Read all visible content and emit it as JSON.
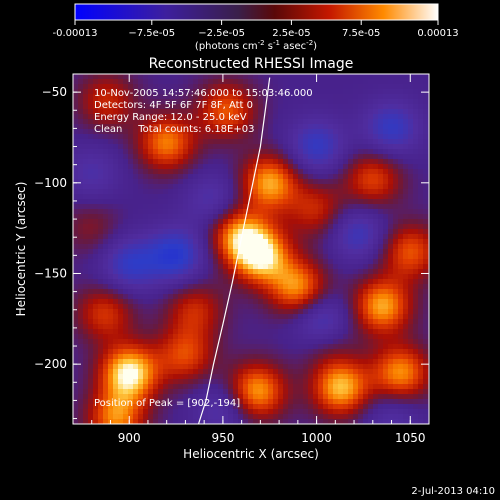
{
  "chart_data": {
    "type": "heatmap",
    "title": "Reconstructed RHESSI Image",
    "xlabel": "Heliocentric X (arcsec)",
    "ylabel": "Heliocentric Y (arcsec)",
    "xlim": [
      870,
      1060
    ],
    "ylim": [
      -233,
      -40
    ],
    "x_ticks": [
      900,
      950,
      1000,
      1050
    ],
    "y_ticks": [
      -50,
      -100,
      -150,
      -200
    ],
    "colorbar": {
      "range": [
        -0.00013,
        0.00013
      ],
      "tick_values": [
        -0.00013,
        -7.5e-05,
        -2.5e-05,
        2.5e-05,
        7.5e-05,
        0.00013
      ],
      "tick_labels": [
        "-0.00013",
        "−7.5e-05",
        "−2.5e-05",
        "2.5e-05",
        "7.5e-05",
        "0.00013"
      ],
      "units_prefix": "(photons cm",
      "units_exp1": "-2",
      "units_mid": " s",
      "units_exp2": "-1",
      "units_mid2": " asec",
      "units_exp3": "-2",
      "units_suffix": ")"
    },
    "annotations": {
      "time_range": "10-Nov-2005 14:57:46.000 to 15:03:46.000",
      "detectors": "Detectors: 4F 5F 6F 7F 8F, Att 0",
      "energy": "Energy Range: 12.0 - 25.0 keV",
      "clean": "Clean     Total counts: 6.18E+03",
      "peak": "Position of Peak = [902,-194]"
    },
    "blobs": [
      {
        "x": 900,
        "y": -205,
        "v": 1.0
      },
      {
        "x": 930,
        "y": -195,
        "v": 0.55
      },
      {
        "x": 893,
        "y": -230,
        "v": 0.7
      },
      {
        "x": 968,
        "y": -215,
        "v": 0.8
      },
      {
        "x": 1013,
        "y": -213,
        "v": 0.85
      },
      {
        "x": 1045,
        "y": -205,
        "v": 0.75
      },
      {
        "x": 1035,
        "y": -168,
        "v": 0.8
      },
      {
        "x": 1050,
        "y": -138,
        "v": 0.6
      },
      {
        "x": 970,
        "y": -140,
        "v": 0.95
      },
      {
        "x": 958,
        "y": -128,
        "v": 0.7
      },
      {
        "x": 990,
        "y": -158,
        "v": 0.75
      },
      {
        "x": 975,
        "y": -100,
        "v": 0.8
      },
      {
        "x": 1000,
        "y": -115,
        "v": 0.45
      },
      {
        "x": 1030,
        "y": -98,
        "v": 0.55
      },
      {
        "x": 920,
        "y": -78,
        "v": 0.7
      },
      {
        "x": 888,
        "y": -55,
        "v": 0.45
      },
      {
        "x": 952,
        "y": -60,
        "v": 0.6
      },
      {
        "x": 887,
        "y": -172,
        "v": 0.5
      },
      {
        "x": 935,
        "y": -170,
        "v": 0.45
      },
      {
        "x": 880,
        "y": -125,
        "v": 0.25
      },
      {
        "x": 1005,
        "y": -185,
        "v": 0.4
      },
      {
        "x": 925,
        "y": -140,
        "v": -0.6
      },
      {
        "x": 900,
        "y": -145,
        "v": -0.5
      },
      {
        "x": 1003,
        "y": -178,
        "v": -0.7
      },
      {
        "x": 1000,
        "y": -80,
        "v": -0.5
      },
      {
        "x": 1040,
        "y": -70,
        "v": -0.5
      },
      {
        "x": 1022,
        "y": -128,
        "v": -0.45
      },
      {
        "x": 945,
        "y": -110,
        "v": -0.35
      },
      {
        "x": 950,
        "y": -225,
        "v": -0.35
      },
      {
        "x": 880,
        "y": -95,
        "v": -0.3
      },
      {
        "x": 1040,
        "y": -230,
        "v": -0.3
      }
    ],
    "limb_curve": {
      "x": [
        975,
        970,
        965,
        960,
        955,
        950,
        945,
        941,
        937
      ],
      "y": [
        -42,
        -80,
        -105,
        -130,
        -155,
        -178,
        -200,
        -220,
        -233
      ]
    }
  },
  "footer": {
    "timestamp": "2-Jul-2013 04:10"
  }
}
